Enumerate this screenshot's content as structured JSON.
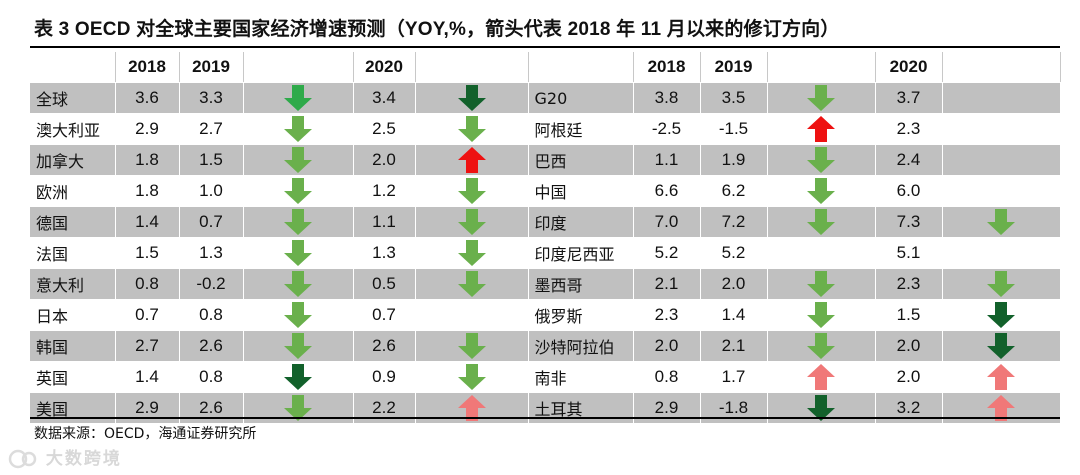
{
  "title": "表 3 OECD 对全球主要国家经济增速预测（YOY,%，箭头代表 2018 年 11 月以来的修订方向）",
  "headers": {
    "y2018": "2018",
    "y2019": "2019",
    "y2020": "2020"
  },
  "colors": {
    "green_light": "#6ab04c",
    "green_mid": "#2eaa4a",
    "green_dark": "#12612b",
    "red": "#ee1111",
    "pink": "#f07878",
    "shade": "#c0c0c0"
  },
  "rows": [
    {
      "left": {
        "name": "全球",
        "v2018": "3.6",
        "v2019": "3.3",
        "a2019": "down-mid",
        "v2020": "3.4",
        "a2020": "down-dark"
      },
      "right": {
        "name": "G20",
        "v2018": "3.8",
        "v2019": "3.5",
        "a2019": "down-light",
        "v2020": "3.7",
        "a2020": ""
      }
    },
    {
      "left": {
        "name": "澳大利亚",
        "v2018": "2.9",
        "v2019": "2.7",
        "a2019": "down-light",
        "v2020": "2.5",
        "a2020": "down-light"
      },
      "right": {
        "name": "阿根廷",
        "v2018": "-2.5",
        "v2019": "-1.5",
        "a2019": "up-red",
        "v2020": "2.3",
        "a2020": ""
      }
    },
    {
      "left": {
        "name": "加拿大",
        "v2018": "1.8",
        "v2019": "1.5",
        "a2019": "down-light",
        "v2020": "2.0",
        "a2020": "up-red"
      },
      "right": {
        "name": "巴西",
        "v2018": "1.1",
        "v2019": "1.9",
        "a2019": "down-light",
        "v2020": "2.4",
        "a2020": ""
      }
    },
    {
      "left": {
        "name": "欧洲",
        "v2018": "1.8",
        "v2019": "1.0",
        "a2019": "down-light",
        "v2020": "1.2",
        "a2020": "down-light"
      },
      "right": {
        "name": "中国",
        "v2018": "6.6",
        "v2019": "6.2",
        "a2019": "down-light",
        "v2020": "6.0",
        "a2020": ""
      }
    },
    {
      "left": {
        "name": "德国",
        "v2018": "1.4",
        "v2019": "0.7",
        "a2019": "down-light",
        "v2020": "1.1",
        "a2020": "down-light"
      },
      "right": {
        "name": "印度",
        "v2018": "7.0",
        "v2019": "7.2",
        "a2019": "down-light",
        "v2020": "7.3",
        "a2020": "down-light"
      }
    },
    {
      "left": {
        "name": "法国",
        "v2018": "1.5",
        "v2019": "1.3",
        "a2019": "down-light",
        "v2020": "1.3",
        "a2020": "down-light"
      },
      "right": {
        "name": "印度尼西亚",
        "v2018": "5.2",
        "v2019": "5.2",
        "a2019": "",
        "v2020": "5.1",
        "a2020": ""
      }
    },
    {
      "left": {
        "name": "意大利",
        "v2018": "0.8",
        "v2019": "-0.2",
        "a2019": "down-light",
        "v2020": "0.5",
        "a2020": "down-light"
      },
      "right": {
        "name": "墨西哥",
        "v2018": "2.1",
        "v2019": "2.0",
        "a2019": "down-light",
        "v2020": "2.3",
        "a2020": "down-light"
      }
    },
    {
      "left": {
        "name": "日本",
        "v2018": "0.7",
        "v2019": "0.8",
        "a2019": "down-light",
        "v2020": "0.7",
        "a2020": ""
      },
      "right": {
        "name": "俄罗斯",
        "v2018": "2.3",
        "v2019": "1.4",
        "a2019": "down-light",
        "v2020": "1.5",
        "a2020": "down-dark"
      }
    },
    {
      "left": {
        "name": "韩国",
        "v2018": "2.7",
        "v2019": "2.6",
        "a2019": "down-light",
        "v2020": "2.6",
        "a2020": "down-light"
      },
      "right": {
        "name": "沙特阿拉伯",
        "v2018": "2.0",
        "v2019": "2.1",
        "a2019": "down-light",
        "v2020": "2.0",
        "a2020": "down-dark"
      }
    },
    {
      "left": {
        "name": "英国",
        "v2018": "1.4",
        "v2019": "0.8",
        "a2019": "down-dark",
        "v2020": "0.9",
        "a2020": "down-light"
      },
      "right": {
        "name": "南非",
        "v2018": "0.8",
        "v2019": "1.7",
        "a2019": "up-pink",
        "v2020": "2.0",
        "a2020": "up-pink"
      }
    },
    {
      "left": {
        "name": "美国",
        "v2018": "2.9",
        "v2019": "2.6",
        "a2019": "down-light",
        "v2020": "2.2",
        "a2020": "up-pink"
      },
      "right": {
        "name": "土耳其",
        "v2018": "2.9",
        "v2019": "-1.8",
        "a2019": "down-dark",
        "v2020": "3.2",
        "a2020": "up-pink"
      }
    }
  ],
  "source": "数据来源：OECD，海通证券研究所",
  "watermark": "大数跨境"
}
